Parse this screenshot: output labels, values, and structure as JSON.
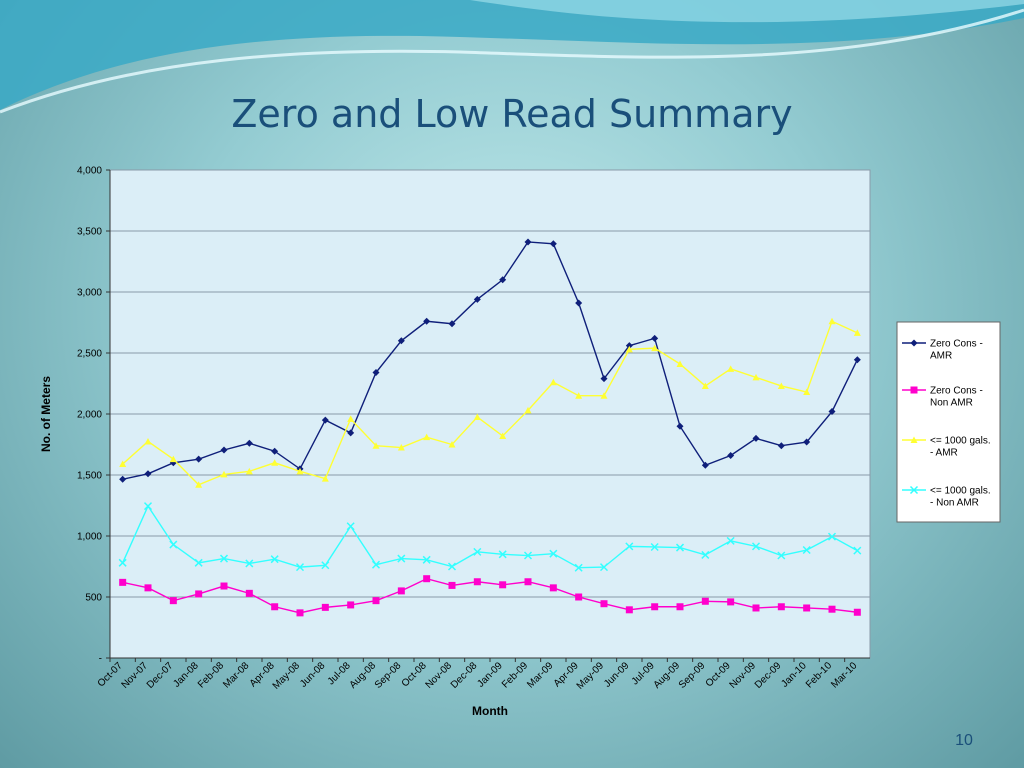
{
  "slide": {
    "title": "Zero and Low Read Summary",
    "page_number": "10"
  },
  "colors": {
    "title": "#1a4f7a",
    "plot_bg": "#dbeef7",
    "gridline": "#8a9aa8",
    "series": [
      "#0f1f7a",
      "#ff00cc",
      "#ffff33",
      "#33ffff"
    ]
  },
  "chart_data": {
    "type": "line",
    "title": "",
    "xlabel": "Month",
    "ylabel": "No. of Meters",
    "ylim": [
      0,
      4000
    ],
    "yticks": [
      0,
      500,
      1000,
      1500,
      2000,
      2500,
      3000,
      3500,
      4000
    ],
    "ytick_labels": [
      "-",
      "500",
      "1,000",
      "1,500",
      "2,000",
      "2,500",
      "3,000",
      "3,500",
      "4,000"
    ],
    "grid": "horizontal",
    "legend_position": "right",
    "categories": [
      "Oct-07",
      "Nov-07",
      "Dec-07",
      "Jan-08",
      "Feb-08",
      "Mar-08",
      "Apr-08",
      "May-08",
      "Jun-08",
      "Jul-08",
      "Aug-08",
      "Sep-08",
      "Oct-08",
      "Nov-08",
      "Dec-08",
      "Jan-09",
      "Feb-09",
      "Mar-09",
      "Apr-09",
      "May-09",
      "Jun-09",
      "Jul-09",
      "Aug-09",
      "Sep-09",
      "Oct-09",
      "Nov-09",
      "Dec-09",
      "Jan-10",
      "Feb-10",
      "Mar-10"
    ],
    "series": [
      {
        "name": "Zero Cons - AMR",
        "marker": "diamond",
        "values": [
          1465,
          1510,
          1600,
          1630,
          1705,
          1760,
          1695,
          1550,
          1950,
          1845,
          2340,
          2600,
          2760,
          2740,
          2940,
          3100,
          3410,
          3395,
          2910,
          2290,
          2560,
          2620,
          1900,
          1580,
          1660,
          1800,
          1740,
          1770,
          2020,
          2445
        ]
      },
      {
        "name": "Zero Cons - Non AMR",
        "marker": "square",
        "values": [
          620,
          575,
          470,
          525,
          590,
          530,
          420,
          370,
          415,
          435,
          470,
          550,
          650,
          595,
          625,
          600,
          625,
          575,
          500,
          445,
          395,
          420,
          420,
          465,
          460,
          410,
          420,
          410,
          400,
          375
        ]
      },
      {
        "name": "<= 1000 gals. - AMR",
        "marker": "triangle",
        "values": [
          1590,
          1775,
          1630,
          1420,
          1505,
          1530,
          1600,
          1530,
          1470,
          1960,
          1740,
          1725,
          1810,
          1750,
          1975,
          1820,
          2030,
          2260,
          2150,
          2150,
          2530,
          2540,
          2410,
          2230,
          2370,
          2300,
          2230,
          2180,
          2760,
          2665
        ]
      },
      {
        "name": "<= 1000 gals. - Non AMR",
        "marker": "x",
        "values": [
          780,
          1245,
          930,
          780,
          815,
          775,
          810,
          745,
          760,
          1080,
          765,
          815,
          805,
          750,
          870,
          850,
          840,
          855,
          740,
          745,
          915,
          910,
          905,
          845,
          960,
          915,
          840,
          885,
          995,
          880
        ]
      }
    ]
  }
}
